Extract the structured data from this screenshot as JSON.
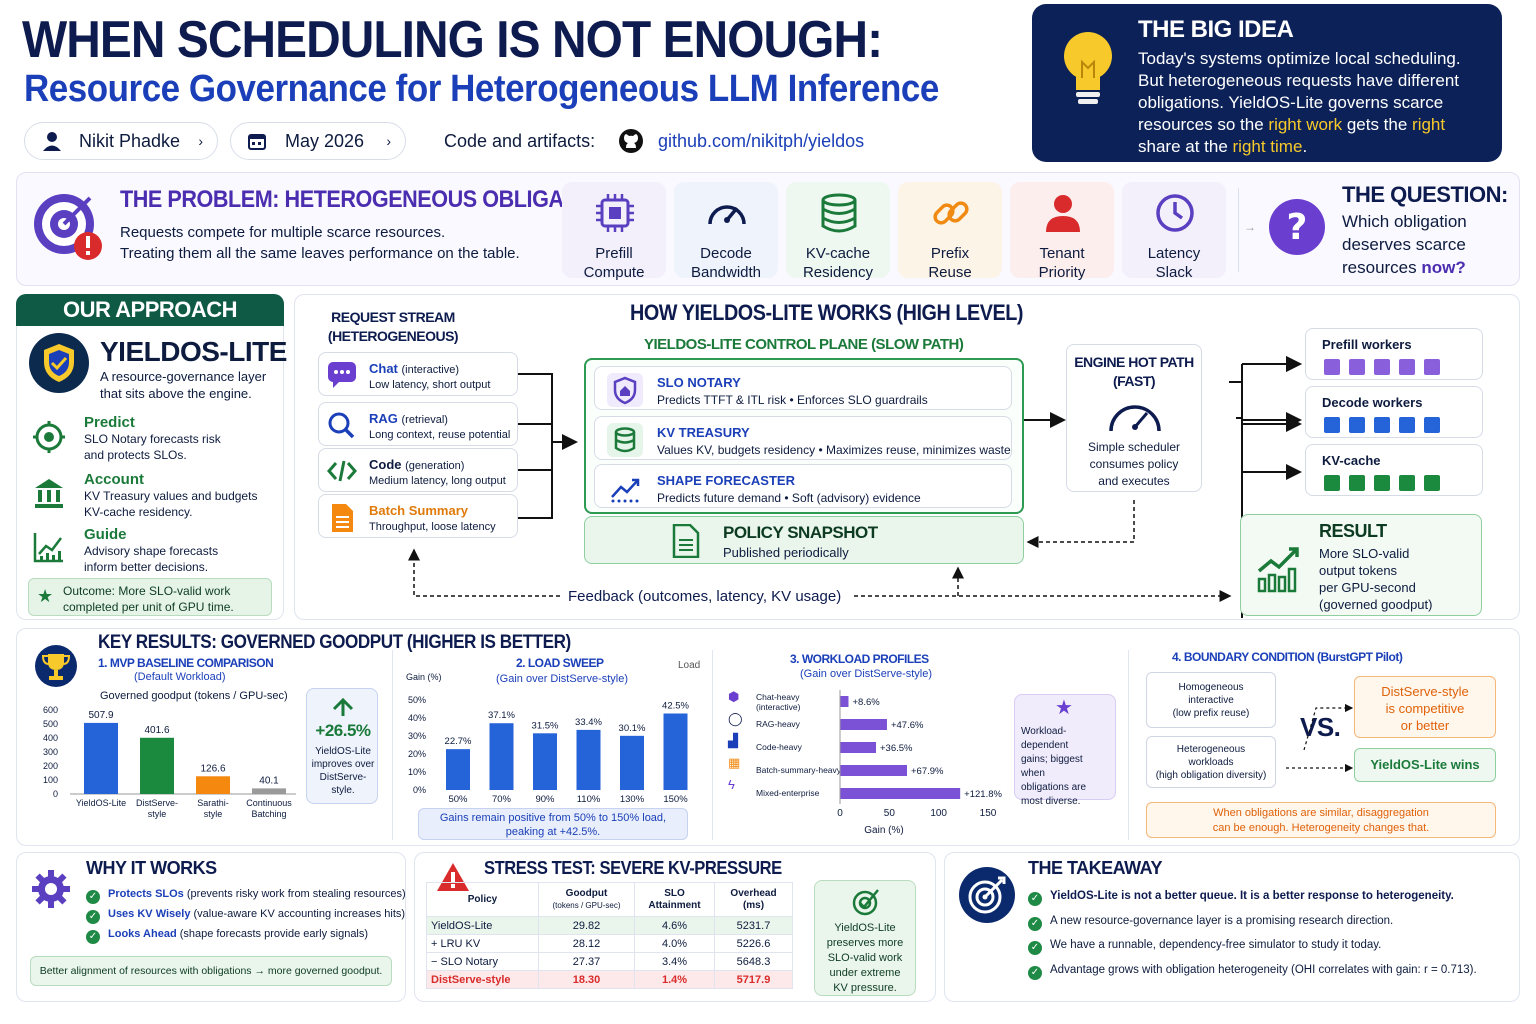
{
  "header": {
    "title": "WHEN SCHEDULING IS NOT ENOUGH:",
    "subtitle": "Resource Governance for Heterogeneous LLM Inference",
    "author": "Nikit Phadke",
    "date": "May 2026",
    "code_label": "Code and artifacts:",
    "repo": "github.com/nikitph/yieldos"
  },
  "big_idea": {
    "title": "THE BIG IDEA",
    "l1": "Today's systems optimize local scheduling.",
    "l2": "But heterogeneous requests have different",
    "l3": "obligations. YieldOS-Lite governs scarce",
    "l4a": "resources so the ",
    "l4b": "right work",
    "l4c": " gets the ",
    "l4d": "right",
    "l5a": "share at the ",
    "l5b": "right time",
    "l5c": "."
  },
  "problem": {
    "title": "THE PROBLEM: HETEROGENEOUS OBLIGATIONS",
    "l1": "Requests compete for multiple scarce resources.",
    "l2": "Treating them all the same leaves performance on the table.",
    "resources": [
      {
        "l1": "Prefill",
        "l2": "Compute"
      },
      {
        "l1": "Decode",
        "l2": "Bandwidth"
      },
      {
        "l1": "KV-cache",
        "l2": "Residency"
      },
      {
        "l1": "Prefix",
        "l2": "Reuse"
      },
      {
        "l1": "Tenant",
        "l2": "Priority"
      },
      {
        "l1": "Latency",
        "l2": "Slack"
      }
    ],
    "question_title": "THE QUESTION:",
    "q1": "Which obligation",
    "q2": "deserves scarce",
    "q3a": "resources ",
    "q3b": "now?"
  },
  "approach": {
    "header": "OUR APPROACH",
    "name": "YIELDOS-LITE",
    "d1": "A resource-governance layer",
    "d2": "that sits above the engine.",
    "items": [
      {
        "t": "Predict",
        "d1": "SLO Notary forecasts risk",
        "d2": "and protects SLOs."
      },
      {
        "t": "Account",
        "d1": "KV Treasury values and budgets",
        "d2": "KV-cache residency."
      },
      {
        "t": "Guide",
        "d1": "Advisory shape forecasts",
        "d2": "inform better decisions."
      }
    ],
    "o1": "Outcome: More SLO-valid work",
    "o2": "completed per unit of GPU time."
  },
  "how": {
    "title": "HOW YIELDOS-LITE WORKS (HIGH LEVEL)",
    "stream1": "REQUEST STREAM",
    "stream2": "(HETEROGENEOUS)",
    "requests": [
      {
        "t": "Chat",
        "p": "(interactive)",
        "d": "Low latency, short output"
      },
      {
        "t": "RAG",
        "p": "(retrieval)",
        "d": "Long context, reuse potential"
      },
      {
        "t": "Code",
        "p": "(generation)",
        "d": "Medium latency, long output"
      },
      {
        "t": "Batch Summary",
        "p": "",
        "d": "Throughput, loose latency"
      }
    ],
    "cp_title": "YIELDOS-LITE CONTROL PLANE (SLOW PATH)",
    "cp": [
      {
        "t": "SLO NOTARY",
        "d": "Predicts TTFT & ITL risk  •  Enforces SLO guardrails"
      },
      {
        "t": "KV TREASURY",
        "d": "Values KV, budgets residency  •  Maximizes reuse, minimizes waste"
      },
      {
        "t": "SHAPE FORECASTER",
        "d": "Predicts future demand  •  Soft (advisory) evidence"
      }
    ],
    "snap_t": "POLICY SNAPSHOT",
    "snap_d": "Published periodically",
    "eng1": "ENGINE HOT PATH",
    "eng2": "(FAST)",
    "eng_d1": "Simple scheduler",
    "eng_d2": "consumes policy",
    "eng_d3": "and executes",
    "workers": [
      "Prefill workers",
      "Decode workers",
      "KV-cache"
    ],
    "feedback": "Feedback (outcomes, latency, KV usage)",
    "result_t": "RESULT",
    "r1": "More SLO-valid",
    "r2": "output tokens",
    "r3": "per GPU-second",
    "r4": "(governed goodput)"
  },
  "key_results": {
    "title": "KEY RESULTS: GOVERNED GOODPUT (HIGHER IS BETTER)",
    "improve_pct": "+26.5%",
    "imp1": "YieldOS-Lite",
    "imp2": "improves over",
    "imp3": "DistServe-",
    "imp4": "style.",
    "sweep_note1": "Gains remain positive from 50% to 150% load,",
    "sweep_note2": "peaking at +42.5%.",
    "wl_note1": "Workload-dependent",
    "wl_note2": "gains; biggest when",
    "wl_note3": "obligations are",
    "wl_note4": "most diverse."
  },
  "chart_data": [
    {
      "type": "bar",
      "title": "1. MVP BASELINE COMPARISON",
      "subtitle": "(Default Workload)",
      "ylabel": "Governed goodput (tokens / GPU-sec)",
      "categories": [
        "YieldOS-Lite",
        "DistServe-style",
        "Sarathi-style",
        "Continuous Batching"
      ],
      "values": [
        507.9,
        401.6,
        126.6,
        40.1
      ],
      "value_labels": [
        "507.9",
        "401.6",
        "126.6",
        "40.1"
      ],
      "colors": [
        "#2563d9",
        "#1b8a3f",
        "#f5880f",
        "#9a9a9a"
      ],
      "yticks": [
        "0",
        "100",
        "200",
        "300",
        "400",
        "500",
        "600"
      ],
      "ylim": [
        0,
        600
      ]
    },
    {
      "type": "bar",
      "title": "2. LOAD SWEEP",
      "subtitle": "(Gain over DistServe-style)",
      "ylabel": "Gain (%)",
      "corner": "Load",
      "categories": [
        "50%",
        "70%",
        "90%",
        "110%",
        "130%",
        "150%"
      ],
      "values": [
        22.7,
        37.1,
        31.5,
        33.4,
        30.1,
        42.5
      ],
      "value_labels": [
        "22.7%",
        "37.1%",
        "31.5%",
        "33.4%",
        "30.1%",
        "42.5%"
      ],
      "yticks": [
        "0%",
        "10%",
        "20%",
        "30%",
        "40%",
        "50%"
      ],
      "ylim": [
        0,
        50
      ]
    },
    {
      "type": "bar",
      "orientation": "horizontal",
      "title": "3. WORKLOAD PROFILES",
      "subtitle": "(Gain over DistServe-style)",
      "xlabel": "Gain (%)",
      "categories": [
        "Chat-heavy (interactive)",
        "RAG-heavy",
        "Code-heavy",
        "Batch-summary-heavy",
        "Mixed-enterprise"
      ],
      "values": [
        8.6,
        47.6,
        36.5,
        67.9,
        121.8
      ],
      "value_labels": [
        "+8.6%",
        "+47.6%",
        "+36.5%",
        "+67.9%",
        "+121.8%"
      ],
      "xticks": [
        "0",
        "50",
        "100",
        "150"
      ],
      "xlim": [
        0,
        150
      ]
    }
  ],
  "boundary": {
    "title": "4. BOUNDARY CONDITION (BurstGPT Pilot)",
    "homo1": "Homogeneous",
    "homo2": "interactive",
    "homo3": "(low prefix reuse)",
    "het1": "Heterogeneous",
    "het2": "workloads",
    "het3": "(high obligation diversity)",
    "vs": "VS.",
    "dist1": "DistServe-style",
    "dist2": "is competitive",
    "dist3": "or better",
    "wins": "YieldOS-Lite wins",
    "n1": "When obligations are similar, disaggregation",
    "n2": "can be enough. Heterogeneity changes that."
  },
  "why": {
    "title": "WHY IT WORKS",
    "items": [
      {
        "b": "Protects SLOs",
        "r": " (prevents risky work from stealing resources)"
      },
      {
        "b": "Uses KV Wisely",
        "r": " (value-aware KV accounting increases hits)"
      },
      {
        "b": "Looks Ahead",
        "r": " (shape forecasts provide early signals)"
      }
    ],
    "bottom": "Better alignment of resources with obligations → more governed goodput."
  },
  "stress": {
    "title": "STRESS TEST: SEVERE KV-PRESSURE",
    "h_policy": "Policy",
    "h_goodput1": "Goodput",
    "h_goodput2": "(tokens / GPU-sec)",
    "h_slo1": "SLO",
    "h_slo2": "Attainment",
    "h_over1": "Overhead",
    "h_over2": "(ms)",
    "rows": [
      {
        "p": "YieldOS-Lite",
        "g": "29.82",
        "s": "4.6%",
        "o": "5231.7"
      },
      {
        "p": "+ LRU KV",
        "g": "28.12",
        "s": "4.0%",
        "o": "5226.6"
      },
      {
        "p": "− SLO Notary",
        "g": "27.37",
        "s": "3.4%",
        "o": "5648.3"
      },
      {
        "p": "DistServe-style",
        "g": "18.30",
        "s": "1.4%",
        "o": "5717.9"
      }
    ],
    "side1": "YieldOS-Lite",
    "side2": "preserves more",
    "side3": "SLO-valid work",
    "side4": "under extreme",
    "side5": "KV pressure."
  },
  "takeaway": {
    "title": "THE TAKEAWAY",
    "items": [
      "YieldOS-Lite is not a better queue. It is a better response to heterogeneity.",
      "A new resource-governance layer is a promising research direction.",
      "We have a runnable, dependency-free simulator to study it today.",
      "Advantage grows with obligation heterogeneity (OHI correlates with gain: r = 0.713)."
    ]
  }
}
